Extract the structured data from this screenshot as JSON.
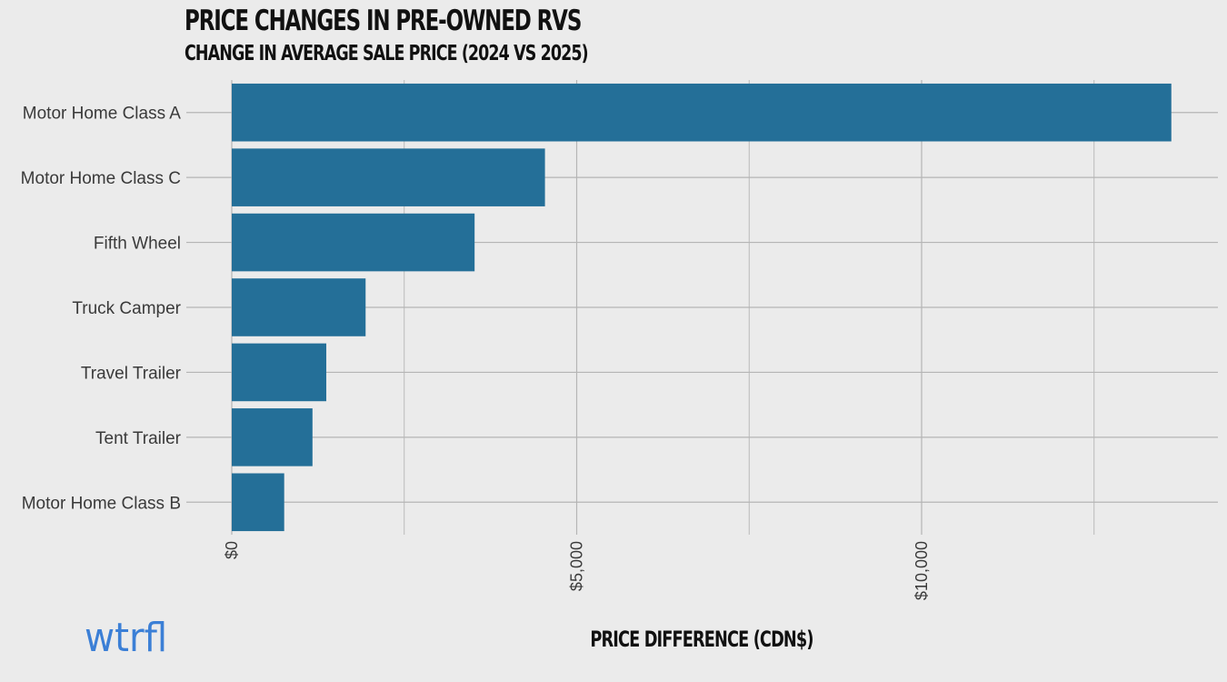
{
  "header": {
    "title": "PRICE CHANGES IN PRE-OWNED RVS",
    "subtitle": "CHANGE IN AVERAGE SALE PRICE (2024 VS 2025)"
  },
  "brand": {
    "logo_text": "wtrfl"
  },
  "colors": {
    "bar": "#246f98",
    "background": "#ebebeb",
    "grid": "#b5b5b5"
  },
  "chart_data": {
    "type": "bar",
    "orientation": "horizontal",
    "title": "PRICE CHANGES IN PRE-OWNED RVS",
    "subtitle": "CHANGE IN AVERAGE SALE PRICE (2024 VS 2025)",
    "xlabel": "PRICE DIFFERENCE (CDN$)",
    "ylabel": "",
    "categories": [
      "Motor Home Class A",
      "Motor Home Class C",
      "Fifth Wheel",
      "Truck Camper",
      "Travel Trailer",
      "Tent Trailer",
      "Motor Home Class B"
    ],
    "values": [
      13620,
      4540,
      3520,
      1940,
      1370,
      1170,
      760
    ],
    "xlim": [
      0,
      14500
    ],
    "x_ticks": [
      0,
      5000,
      10000
    ],
    "x_tick_labels": [
      "$0",
      "$5,000",
      "$10,000"
    ],
    "grid": true,
    "legend": "none"
  }
}
